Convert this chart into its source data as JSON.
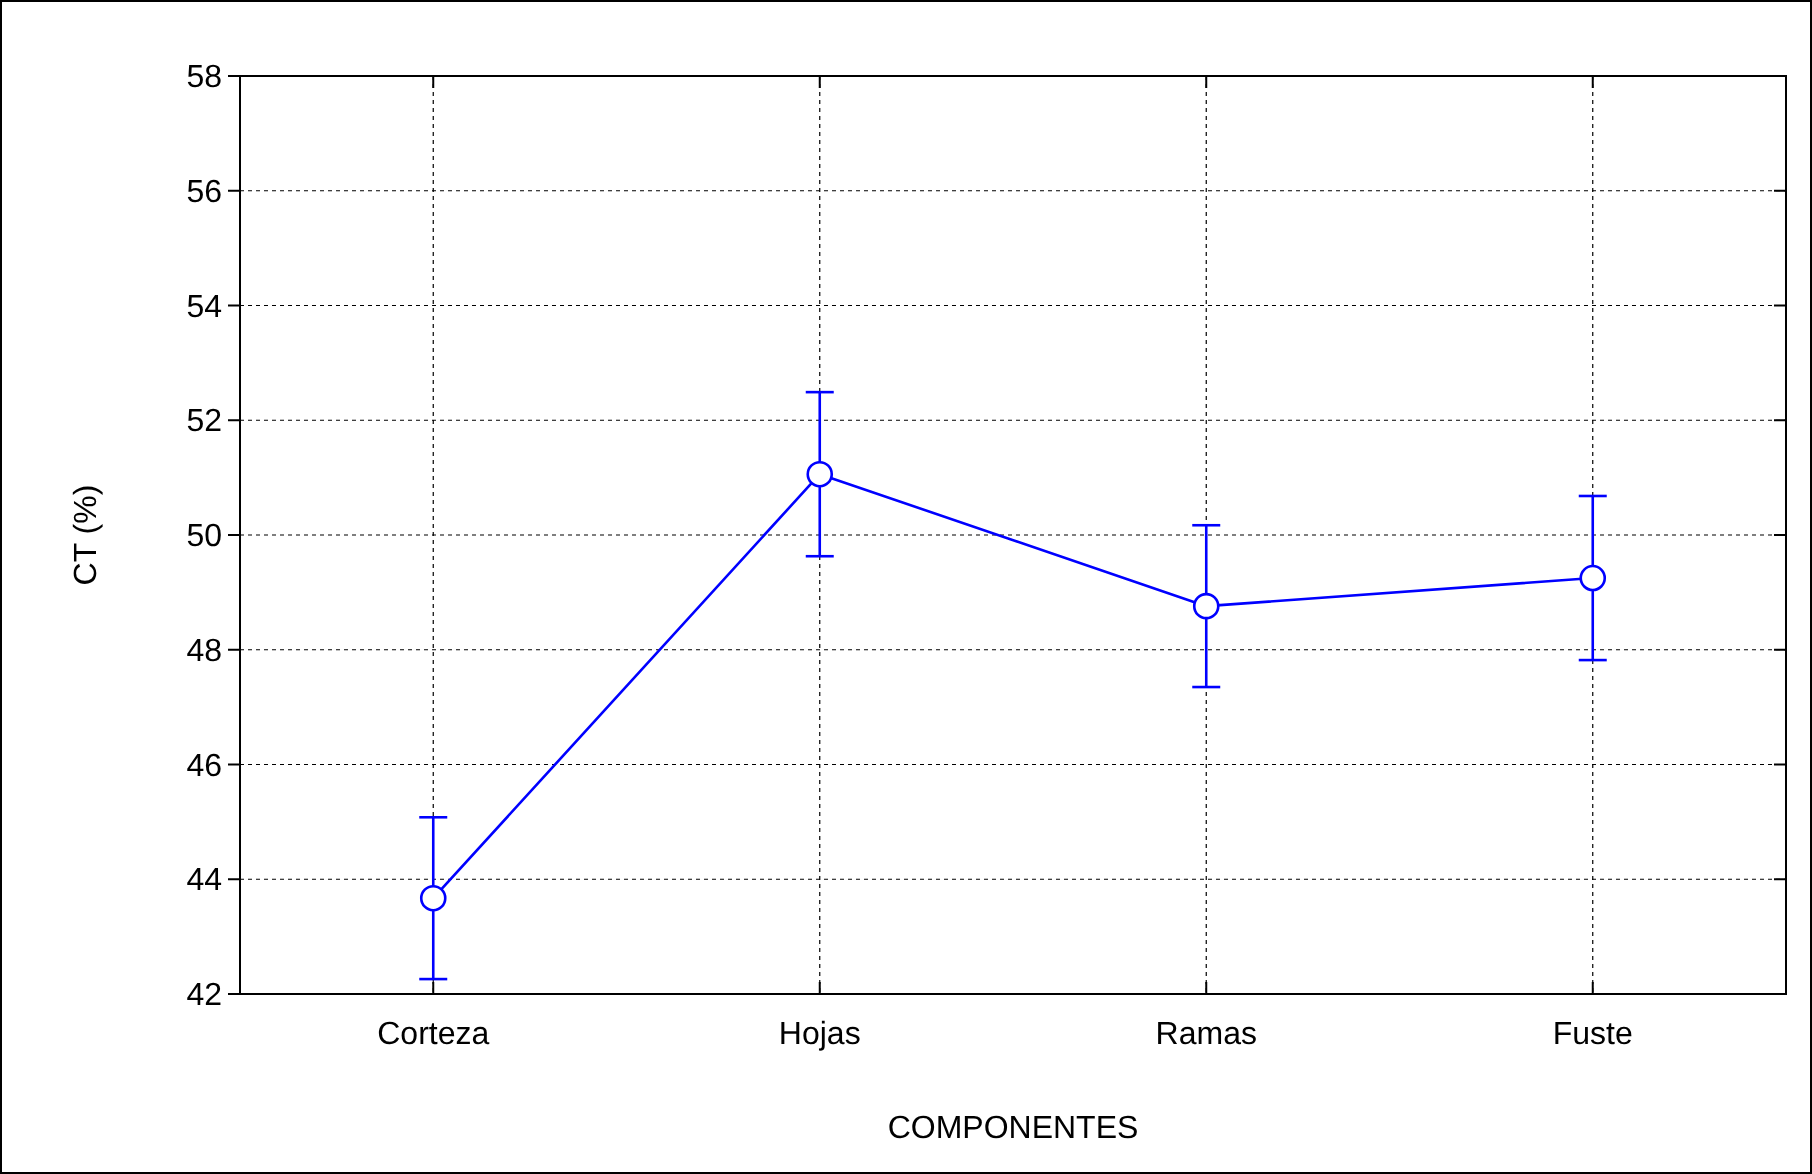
{
  "chart_data": {
    "type": "line",
    "xlabel": "COMPONENTES",
    "ylabel": "CT (%)",
    "categories": [
      "Corteza",
      "Hojas",
      "Ramas",
      "Fuste"
    ],
    "series": [
      {
        "color": "#0000ff",
        "values": [
          43.67,
          51.06,
          48.76,
          49.25
        ],
        "errors": [
          1.41,
          1.43,
          1.41,
          1.43
        ]
      }
    ],
    "ylim": [
      42,
      58
    ],
    "yticks": [
      42,
      44,
      46,
      48,
      50,
      52,
      54,
      56,
      58
    ],
    "grid": true,
    "marker": "circle",
    "line_style": "solid"
  }
}
